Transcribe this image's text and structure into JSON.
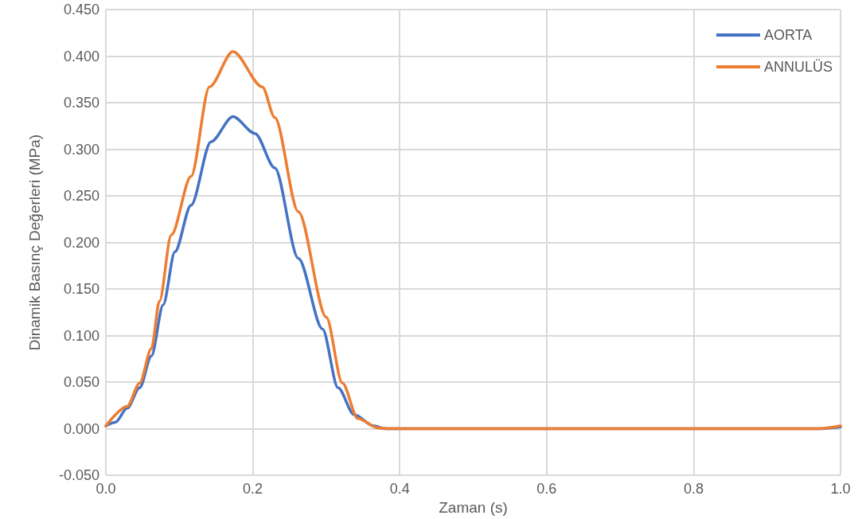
{
  "chart_data": {
    "type": "line",
    "xlabel": "Zaman (s)",
    "ylabel": "Dinamik Basınç Değerleri (MPa)",
    "xlim": [
      0,
      1
    ],
    "xticks": [
      {
        "value": 0,
        "label": "0.0"
      },
      {
        "value": 0.2,
        "label": "0.2"
      },
      {
        "value": 0.4,
        "label": "0.4"
      },
      {
        "value": 0.6,
        "label": "0.6"
      },
      {
        "value": 0.8,
        "label": "0.8"
      },
      {
        "value": 1,
        "label": "1.0"
      }
    ],
    "ylim": [
      -0.05,
      0.45
    ],
    "yticks": [
      {
        "value": -0.05,
        "label": "-0.050"
      },
      {
        "value": 0,
        "label": "0.000"
      },
      {
        "value": 0.05,
        "label": "0.050"
      },
      {
        "value": 0.1,
        "label": "0.100"
      },
      {
        "value": 0.15,
        "label": "0.150"
      },
      {
        "value": 0.2,
        "label": "0.200"
      },
      {
        "value": 0.25,
        "label": "0.250"
      },
      {
        "value": 0.3,
        "label": "0.300"
      },
      {
        "value": 0.35,
        "label": "0.350"
      },
      {
        "value": 0.4,
        "label": "0.400"
      },
      {
        "value": 0.45,
        "label": "0.450"
      }
    ],
    "grid": true,
    "legend": "top right",
    "marker": "none",
    "line_style": "solid",
    "series": [
      {
        "name": "AORTA",
        "color": "#4472c4",
        "x": [
          0,
          0.013,
          0.029,
          0.046,
          0.062,
          0.078,
          0.094,
          0.116,
          0.143,
          0.173,
          0.203,
          0.23,
          0.262,
          0.295,
          0.316,
          0.338,
          0.365,
          0.38,
          0.5,
          0.7,
          0.9,
          0.97,
          1.0
        ],
        "values": [
          0.003,
          0.007,
          0.022,
          0.044,
          0.078,
          0.133,
          0.19,
          0.24,
          0.308,
          0.335,
          0.317,
          0.28,
          0.183,
          0.107,
          0.044,
          0.015,
          0.003,
          0,
          0,
          0,
          0,
          0,
          0.002
        ]
      },
      {
        "name": "ANNULÜS",
        "color": "#ed7d31",
        "x": [
          0,
          0.029,
          0.046,
          0.062,
          0.073,
          0.089,
          0.116,
          0.141,
          0.173,
          0.213,
          0.23,
          0.262,
          0.3,
          0.322,
          0.343,
          0.37,
          0.387,
          0.5,
          0.7,
          0.9,
          0.97,
          1.0
        ],
        "values": [
          0.003,
          0.024,
          0.049,
          0.086,
          0.137,
          0.208,
          0.271,
          0.367,
          0.405,
          0.367,
          0.334,
          0.233,
          0.12,
          0.049,
          0.011,
          0.001,
          0,
          0,
          0,
          0,
          0,
          0.003
        ]
      }
    ]
  }
}
